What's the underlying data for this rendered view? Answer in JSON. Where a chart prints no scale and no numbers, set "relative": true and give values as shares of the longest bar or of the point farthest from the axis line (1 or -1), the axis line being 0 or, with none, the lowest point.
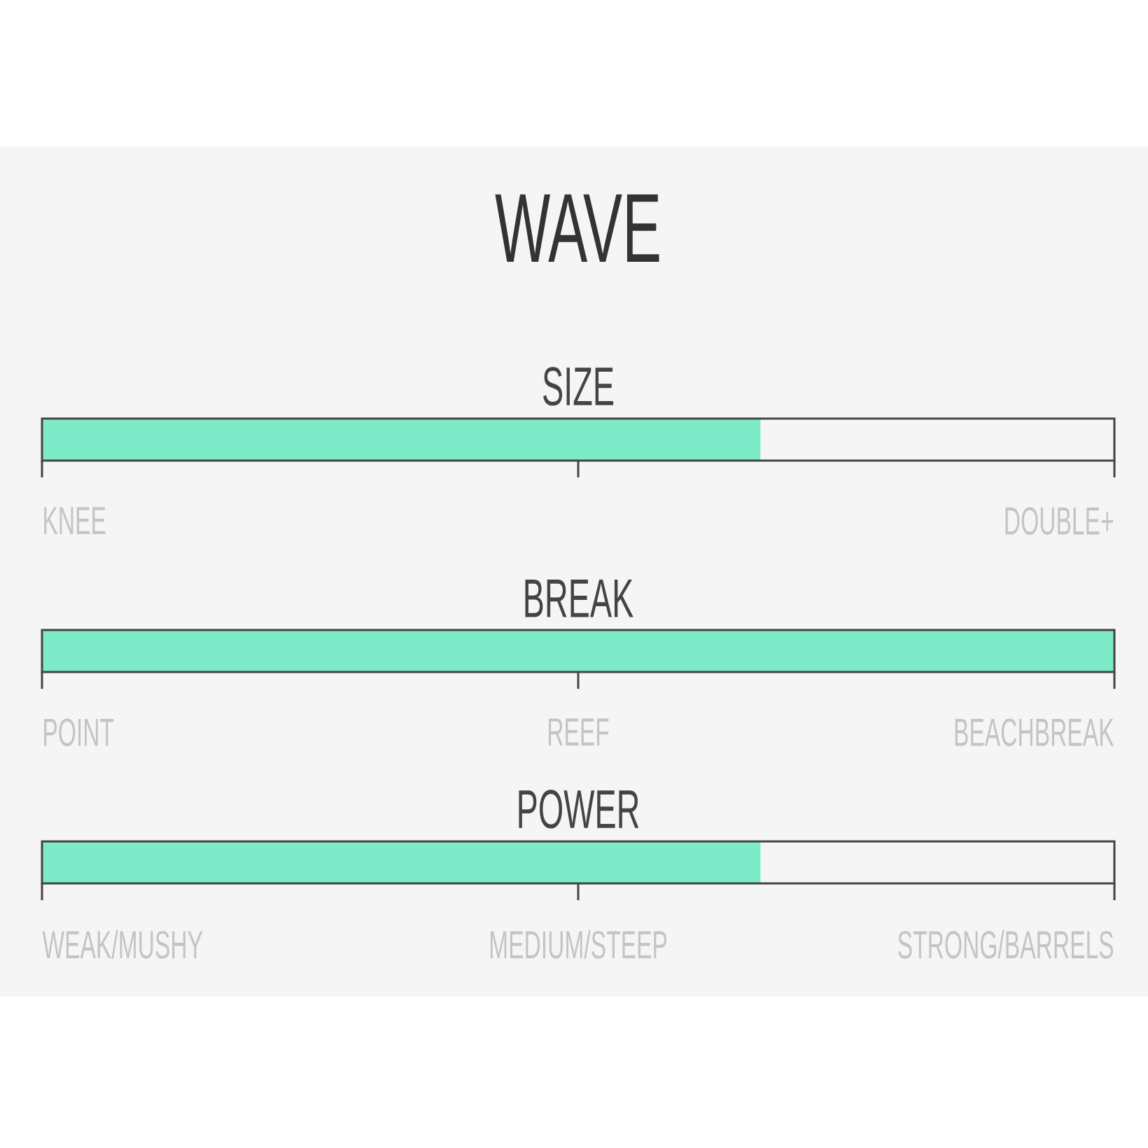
{
  "chart_data": {
    "type": "bar",
    "orientation": "horizontal",
    "relative": true,
    "title": "WAVE",
    "categories": [
      "SIZE",
      "BREAK",
      "POWER"
    ],
    "values": [
      0.67,
      1,
      0.67
    ],
    "color": "#7debc8",
    "annotations": [
      "KNEE",
      "DOUBLE+",
      "POINT",
      "REEF",
      "BEACHBREAK",
      "WEAK/MUSHY",
      "MEDIUM/STEEP",
      "STRONG/BARRELS"
    ]
  }
}
